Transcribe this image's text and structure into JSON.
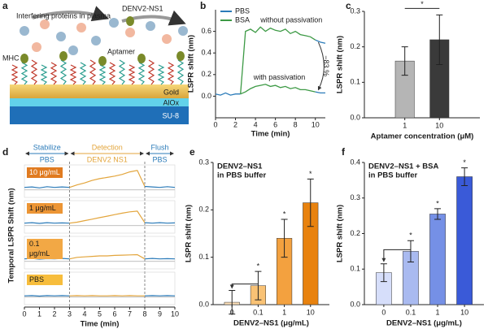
{
  "diagram": {
    "panel_label": "a",
    "labels": {
      "proteins": "Interfering proteins in plasma",
      "target": "DENV2-NS1",
      "mhc": "MHC",
      "aptamer": "Aptamer",
      "gold": "Gold",
      "alox": "AlOx",
      "su8": "SU-8"
    }
  },
  "chart_data": [
    {
      "panel_label": "b",
      "type": "line",
      "x": [
        0,
        0.5,
        1,
        1.5,
        2,
        2.5,
        3,
        3.5,
        4,
        4.5,
        5,
        5.5,
        6,
        6.5,
        7,
        7.5,
        8,
        8.5,
        9,
        9.5,
        10,
        10.5,
        11
      ],
      "series": [
        {
          "name": "PBS",
          "color": "#2b7bb9",
          "values": [
            0.02,
            0.01,
            0.03,
            0.01,
            0.02,
            0.02,
            null,
            null,
            null,
            null,
            null,
            null,
            null,
            null,
            null,
            null,
            null,
            null,
            null,
            null,
            0.52,
            0.5,
            0.49
          ]
        },
        {
          "name": "BSA",
          "color": "#3d9a45",
          "values": [
            null,
            null,
            null,
            null,
            null,
            0.02,
            0.6,
            0.62,
            0.59,
            0.64,
            0.6,
            0.63,
            0.61,
            0.6,
            0.62,
            0.58,
            0.6,
            0.57,
            0.56,
            0.55,
            0.52,
            null,
            null
          ]
        },
        {
          "color": "#3d9a45",
          "values": [
            null,
            null,
            null,
            null,
            null,
            0.02,
            0.04,
            0.07,
            0.09,
            0.1,
            0.11,
            0.09,
            0.1,
            0.08,
            0.09,
            0.07,
            0.08,
            0.06,
            0.06,
            0.05,
            0.04,
            null,
            null
          ]
        },
        {
          "color": "#2b7bb9",
          "values": [
            null,
            null,
            null,
            null,
            null,
            null,
            null,
            null,
            null,
            null,
            null,
            null,
            null,
            null,
            null,
            null,
            null,
            null,
            null,
            null,
            0.04,
            0.03,
            0.03
          ]
        }
      ],
      "xlim": [
        0,
        11
      ],
      "ylim": [
        -0.2,
        0.8
      ],
      "xticks": [
        0,
        2,
        4,
        6,
        8,
        10
      ],
      "yticks": [
        {
          "value": 0,
          "label": "0.0"
        },
        0.2,
        0.4,
        0.6
      ],
      "x_label": "Time (min)",
      "y_label": "LSPR shift (nm)",
      "legend": "upper left",
      "annotations": [
        "without passivation",
        "with passivation",
        "−83 %"
      ]
    },
    {
      "panel_label": "c",
      "type": "bar",
      "categories": [
        "1",
        "10"
      ],
      "values": [
        0.16,
        0.22
      ],
      "errors": [
        0.04,
        0.07
      ],
      "colors": [
        "#b5b5b5",
        "#3a3a3a"
      ],
      "ylim": [
        0,
        0.3
      ],
      "yticks": [
        {
          "value": 0,
          "label": "0.0"
        },
        0.1,
        0.2,
        0.3
      ],
      "x_label": "Aptamer concentration (μM)",
      "y_label": "LSPR shift (nm)",
      "bracket_label": "*"
    },
    {
      "panel_label": "d",
      "type": "traces",
      "x": [
        0,
        0.5,
        1,
        1.5,
        2,
        2.5,
        3,
        3.5,
        4,
        4.5,
        5,
        5.5,
        6,
        6.5,
        7,
        7.5,
        8,
        8.5,
        9,
        9.5,
        10
      ],
      "phases": [
        {
          "name": "Stabilize",
          "buffer": "PBS",
          "start": 0,
          "end": 3,
          "color": "#2b7bb9"
        },
        {
          "name": "Detection",
          "buffer": "DENV2 NS1",
          "start": 3,
          "end": 8,
          "color": "#e3a53c"
        },
        {
          "name": "Flush",
          "buffer": "PBS",
          "start": 8,
          "end": 10,
          "color": "#2b7bb9"
        }
      ],
      "traces": [
        {
          "label": [
            "10 μg/mL"
          ],
          "label_color": "#e07b20",
          "values": [
            0.1,
            0.12,
            0.08,
            0.13,
            0.1,
            0.12,
            0.1,
            0.2,
            0.28,
            0.38,
            0.45,
            0.5,
            0.55,
            0.62,
            0.72,
            0.78,
            0.14,
            0.12,
            0.1,
            0.13,
            0.1
          ]
        },
        {
          "label": [
            "1 μg/mL"
          ],
          "label_color": "#ec9535",
          "values": [
            0.1,
            0.12,
            0.09,
            0.12,
            0.1,
            0.11,
            0.1,
            0.14,
            0.2,
            0.26,
            0.32,
            0.38,
            0.44,
            0.5,
            0.55,
            0.58,
            0.12,
            0.1,
            0.12,
            0.1,
            0.11
          ]
        },
        {
          "label": [
            "0.1",
            "μg/mL"
          ],
          "label_color": "#f2a845",
          "values": [
            0.1,
            0.12,
            0.09,
            0.11,
            0.1,
            0.12,
            0.1,
            0.16,
            0.18,
            0.2,
            0.22,
            0.22,
            0.24,
            0.25,
            0.26,
            0.27,
            0.1,
            0.12,
            0.1,
            0.11,
            0.1
          ]
        },
        {
          "label": [
            "PBS"
          ],
          "label_color": "#f7bd3c",
          "values": [
            0.05,
            0.06,
            0.04,
            0.06,
            0.05,
            0.06,
            0.05,
            0.06,
            0.05,
            0.06,
            0.05,
            0.05,
            0.06,
            0.05,
            0.06,
            0.05,
            0.05,
            0.06,
            0.05,
            0.06,
            0.05
          ]
        }
      ],
      "xlim": [
        0,
        10
      ],
      "ylim": [
        -0.3,
        1
      ],
      "xticks": [
        0,
        1,
        2,
        3,
        4,
        5,
        6,
        7,
        8,
        9,
        10
      ],
      "x_label": "Time (min)",
      "y_label": "Temporal LSPR Shift (nm)"
    },
    {
      "panel_label": "e",
      "type": "bar",
      "title": [
        "DENV2–NS1",
        "in PBS buffer"
      ],
      "categories": [
        "0",
        "0.1",
        "1",
        "10"
      ],
      "values": [
        0.005,
        0.04,
        0.14,
        0.215
      ],
      "errors": [
        0.025,
        0.03,
        0.04,
        0.05
      ],
      "star_labels": [
        null,
        "*",
        "*",
        "*"
      ],
      "colors": [
        "#fde0b8",
        "#f9c275",
        "#f3a13f",
        "#e8820e"
      ],
      "ylim": [
        0,
        0.3
      ],
      "yticks": [
        {
          "value": 0,
          "label": "0.0"
        },
        0.1,
        0.2,
        0.3
      ],
      "x_label": "DENV2–NS1 (μg/mL)",
      "y_label": "LSPR shift (nm)"
    },
    {
      "panel_label": "f",
      "type": "bar",
      "title": [
        "DENV2–NS1 + BSA",
        "in PBS buffer"
      ],
      "categories": [
        "0",
        "0.1",
        "1",
        "10"
      ],
      "values": [
        0.09,
        0.15,
        0.255,
        0.36
      ],
      "errors": [
        0.025,
        0.03,
        0.015,
        0.025
      ],
      "star_labels": [
        null,
        "*",
        "*",
        "*"
      ],
      "colors": [
        "#d6defa",
        "#a9baf0",
        "#7590e6",
        "#3a5ad8"
      ],
      "ylim": [
        0,
        0.4
      ],
      "yticks": [
        {
          "value": 0,
          "label": "0.0"
        },
        0.1,
        0.2,
        0.3,
        0.4
      ],
      "x_label": "DENV2–NS1 (μg/mL)",
      "y_label": "LSPR shift (nm)"
    }
  ]
}
